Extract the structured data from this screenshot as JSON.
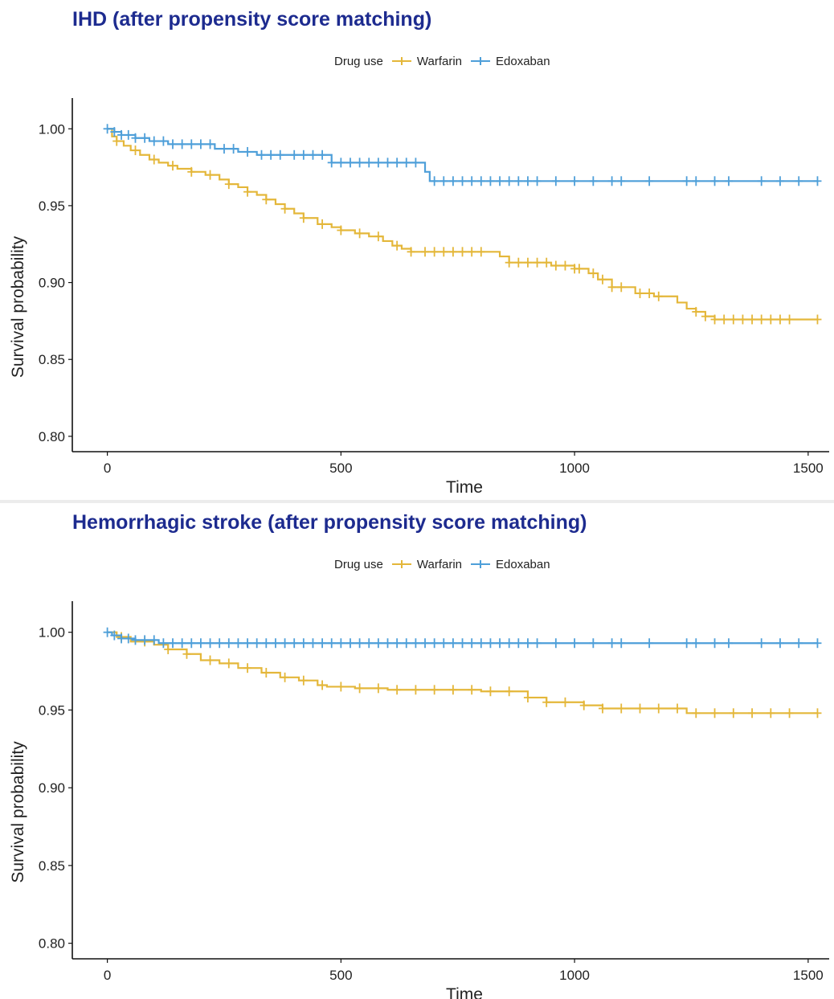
{
  "chart_data": [
    {
      "type": "line",
      "title": "IHD (after propensity score matching)",
      "xlabel": "Time",
      "ylabel": "Survival probability",
      "xlim": [
        -75,
        1545
      ],
      "ylim": [
        0.79,
        1.02
      ],
      "xticks": [
        0,
        500,
        1000,
        1500
      ],
      "yticks": [
        0.8,
        0.85,
        0.9,
        0.95,
        1.0
      ],
      "ytick_labels": [
        "0.80",
        "0.85",
        "0.90",
        "0.95",
        "1.00"
      ],
      "xtick_labels": [
        "0",
        "500",
        "1000",
        "1500"
      ],
      "legend": {
        "title": "Drug use",
        "position": "top"
      },
      "grid": false,
      "series": [
        {
          "name": "Warfarin",
          "color": "#E4B73A",
          "x": [
            0,
            10,
            20,
            35,
            50,
            70,
            90,
            110,
            130,
            150,
            180,
            210,
            240,
            260,
            280,
            300,
            320,
            340,
            360,
            380,
            400,
            420,
            450,
            480,
            500,
            530,
            560,
            590,
            610,
            630,
            650,
            670,
            700,
            740,
            780,
            800,
            820,
            840,
            860,
            900,
            950,
            1000,
            1030,
            1050,
            1080,
            1100,
            1130,
            1170,
            1200,
            1220,
            1240,
            1260,
            1280,
            1300,
            1330,
            1380,
            1450,
            1520
          ],
          "y": [
            1.0,
            0.995,
            0.992,
            0.989,
            0.986,
            0.983,
            0.98,
            0.978,
            0.976,
            0.974,
            0.972,
            0.97,
            0.967,
            0.964,
            0.962,
            0.959,
            0.957,
            0.954,
            0.951,
            0.948,
            0.945,
            0.942,
            0.938,
            0.936,
            0.934,
            0.932,
            0.93,
            0.927,
            0.924,
            0.922,
            0.92,
            0.92,
            0.92,
            0.92,
            0.92,
            0.92,
            0.92,
            0.917,
            0.913,
            0.913,
            0.911,
            0.909,
            0.906,
            0.902,
            0.897,
            0.897,
            0.893,
            0.891,
            0.891,
            0.887,
            0.883,
            0.881,
            0.878,
            0.876,
            0.876,
            0.876,
            0.876,
            0.876
          ],
          "censor_x": [
            20,
            60,
            100,
            140,
            180,
            220,
            260,
            300,
            340,
            380,
            420,
            460,
            500,
            540,
            580,
            620,
            650,
            680,
            700,
            720,
            740,
            760,
            780,
            800,
            860,
            880,
            900,
            920,
            940,
            960,
            980,
            1000,
            1010,
            1040,
            1060,
            1080,
            1100,
            1140,
            1160,
            1180,
            1260,
            1280,
            1300,
            1320,
            1340,
            1360,
            1380,
            1400,
            1420,
            1440,
            1460,
            1520
          ]
        },
        {
          "name": "Edoxaban",
          "color": "#4E9FD9",
          "x": [
            0,
            15,
            30,
            60,
            90,
            130,
            200,
            230,
            280,
            320,
            380,
            440,
            480,
            500,
            600,
            670,
            680,
            690,
            1000,
            1520
          ],
          "y": [
            1.0,
            0.998,
            0.996,
            0.994,
            0.992,
            0.99,
            0.99,
            0.987,
            0.985,
            0.983,
            0.983,
            0.983,
            0.978,
            0.978,
            0.978,
            0.978,
            0.972,
            0.966,
            0.966,
            0.966
          ],
          "censor_x": [
            0,
            15,
            30,
            45,
            60,
            80,
            100,
            120,
            140,
            160,
            180,
            200,
            220,
            250,
            270,
            300,
            330,
            350,
            370,
            400,
            420,
            440,
            460,
            480,
            500,
            520,
            540,
            560,
            580,
            600,
            620,
            640,
            660,
            700,
            720,
            740,
            760,
            780,
            800,
            820,
            840,
            860,
            880,
            900,
            920,
            960,
            1000,
            1040,
            1080,
            1100,
            1160,
            1240,
            1260,
            1300,
            1330,
            1400,
            1440,
            1480,
            1520
          ]
        }
      ]
    },
    {
      "type": "line",
      "title": "Hemorrhagic stroke (after propensity score matching)",
      "xlabel": "Time",
      "ylabel": "Survival probability",
      "xlim": [
        -75,
        1545
      ],
      "ylim": [
        0.79,
        1.02
      ],
      "xticks": [
        0,
        500,
        1000,
        1500
      ],
      "yticks": [
        0.8,
        0.85,
        0.9,
        0.95,
        1.0
      ],
      "ytick_labels": [
        "0.80",
        "0.85",
        "0.90",
        "0.95",
        "1.00"
      ],
      "xtick_labels": [
        "0",
        "500",
        "1000",
        "1500"
      ],
      "legend": {
        "title": "Drug use",
        "position": "top"
      },
      "grid": false,
      "series": [
        {
          "name": "Warfarin",
          "color": "#E4B73A",
          "x": [
            0,
            20,
            50,
            100,
            130,
            170,
            200,
            240,
            280,
            330,
            370,
            410,
            450,
            470,
            530,
            600,
            700,
            800,
            880,
            900,
            940,
            980,
            1020,
            1060,
            1140,
            1200,
            1240,
            1280,
            1380,
            1520
          ],
          "y": [
            1.0,
            0.997,
            0.994,
            0.992,
            0.989,
            0.986,
            0.982,
            0.98,
            0.977,
            0.974,
            0.971,
            0.969,
            0.966,
            0.965,
            0.964,
            0.963,
            0.963,
            0.962,
            0.962,
            0.958,
            0.955,
            0.955,
            0.953,
            0.951,
            0.951,
            0.951,
            0.948,
            0.948,
            0.948,
            0.948
          ],
          "censor_x": [
            30,
            80,
            130,
            170,
            220,
            260,
            300,
            340,
            380,
            420,
            460,
            500,
            540,
            580,
            620,
            660,
            700,
            740,
            780,
            820,
            860,
            900,
            940,
            980,
            1020,
            1060,
            1100,
            1140,
            1180,
            1220,
            1260,
            1300,
            1340,
            1380,
            1420,
            1460,
            1520
          ]
        },
        {
          "name": "Edoxaban",
          "color": "#4E9FD9",
          "x": [
            0,
            10,
            30,
            60,
            110,
            1520
          ],
          "y": [
            1.0,
            0.998,
            0.996,
            0.995,
            0.993,
            0.993
          ],
          "censor_x": [
            0,
            15,
            30,
            45,
            60,
            80,
            100,
            120,
            140,
            160,
            180,
            200,
            220,
            240,
            260,
            280,
            300,
            320,
            340,
            360,
            380,
            400,
            420,
            440,
            460,
            480,
            500,
            520,
            540,
            560,
            580,
            600,
            620,
            640,
            660,
            680,
            700,
            720,
            740,
            760,
            780,
            800,
            820,
            840,
            860,
            880,
            900,
            920,
            960,
            1000,
            1040,
            1080,
            1100,
            1160,
            1240,
            1260,
            1300,
            1330,
            1400,
            1440,
            1480,
            1520
          ]
        }
      ]
    }
  ]
}
